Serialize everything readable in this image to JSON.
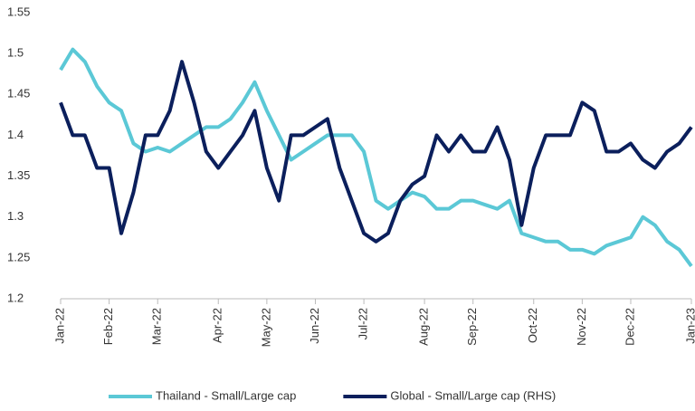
{
  "chart_data": {
    "type": "line",
    "categories": [
      "Jan-22",
      null,
      null,
      null,
      "Feb-22",
      null,
      null,
      null,
      "Mar-22",
      null,
      null,
      null,
      null,
      "Apr-22",
      null,
      null,
      null,
      "May-22",
      null,
      null,
      null,
      "Jun-22",
      null,
      null,
      null,
      "Jul-22",
      null,
      null,
      null,
      null,
      "Aug-22",
      null,
      null,
      null,
      "Sep-22",
      null,
      null,
      null,
      null,
      "Oct-22",
      null,
      null,
      null,
      "Nov-22",
      null,
      null,
      null,
      "Dec-22",
      null,
      null,
      null,
      null,
      "Jan-23"
    ],
    "series": [
      {
        "name": "Thailand - Small/Large cap",
        "color": "#5bc8d6",
        "values": [
          1.48,
          1.505,
          1.49,
          1.46,
          1.44,
          1.43,
          1.39,
          1.38,
          1.385,
          1.38,
          1.39,
          1.4,
          1.41,
          1.41,
          1.42,
          1.44,
          1.465,
          1.43,
          1.4,
          1.37,
          1.38,
          1.39,
          1.4,
          1.4,
          1.4,
          1.38,
          1.32,
          1.31,
          1.32,
          1.33,
          1.325,
          1.31,
          1.31,
          1.32,
          1.32,
          1.315,
          1.31,
          1.32,
          1.28,
          1.275,
          1.27,
          1.27,
          1.26,
          1.26,
          1.255,
          1.265,
          1.27,
          1.275,
          1.3,
          1.29,
          1.27,
          1.26,
          1.24
        ]
      },
      {
        "name": "Global - Small/Large cap (RHS)",
        "color": "#0b1f5c",
        "values": [
          1.44,
          1.4,
          1.4,
          1.36,
          1.36,
          1.28,
          1.33,
          1.4,
          1.4,
          1.43,
          1.49,
          1.44,
          1.38,
          1.36,
          1.38,
          1.4,
          1.43,
          1.36,
          1.32,
          1.4,
          1.4,
          1.41,
          1.42,
          1.36,
          1.32,
          1.28,
          1.27,
          1.28,
          1.32,
          1.34,
          1.35,
          1.4,
          1.38,
          1.4,
          1.38,
          1.38,
          1.41,
          1.37,
          1.29,
          1.36,
          1.4,
          1.4,
          1.4,
          1.44,
          1.43,
          1.38,
          1.38,
          1.39,
          1.37,
          1.36,
          1.38,
          1.39,
          1.41
        ]
      }
    ],
    "ylim": [
      1.2,
      1.55
    ],
    "yticks": [
      1.2,
      1.25,
      1.3,
      1.35,
      1.4,
      1.45,
      1.5,
      1.55
    ],
    "grid": false,
    "legend": "bottom"
  }
}
